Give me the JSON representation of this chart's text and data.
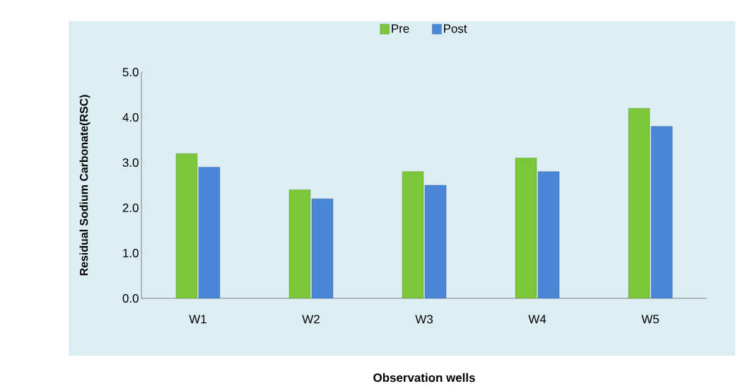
{
  "chart_data": {
    "type": "bar",
    "xlabel": "Observation wells",
    "ylabel": "Residual Sodium Carbonate(RSC)",
    "categories": [
      "W1",
      "W2",
      "W3",
      "W4",
      "W5"
    ],
    "series": [
      {
        "name": "Pre",
        "color": "#7cc63a",
        "values": [
          3.2,
          2.4,
          2.8,
          3.1,
          4.2
        ]
      },
      {
        "name": "Post",
        "color": "#4a86d6",
        "values": [
          2.9,
          2.2,
          2.5,
          2.8,
          3.8
        ]
      }
    ],
    "ylim": [
      0,
      5
    ],
    "yticks": [
      {
        "value": 0,
        "label": "0.0"
      },
      {
        "value": 1,
        "label": "1.0"
      },
      {
        "value": 2,
        "label": "2.0"
      },
      {
        "value": 3,
        "label": "3.0"
      },
      {
        "value": 4,
        "label": "4.0"
      },
      {
        "value": 5,
        "label": "5.0"
      }
    ],
    "legend": "top",
    "grid": false
  }
}
